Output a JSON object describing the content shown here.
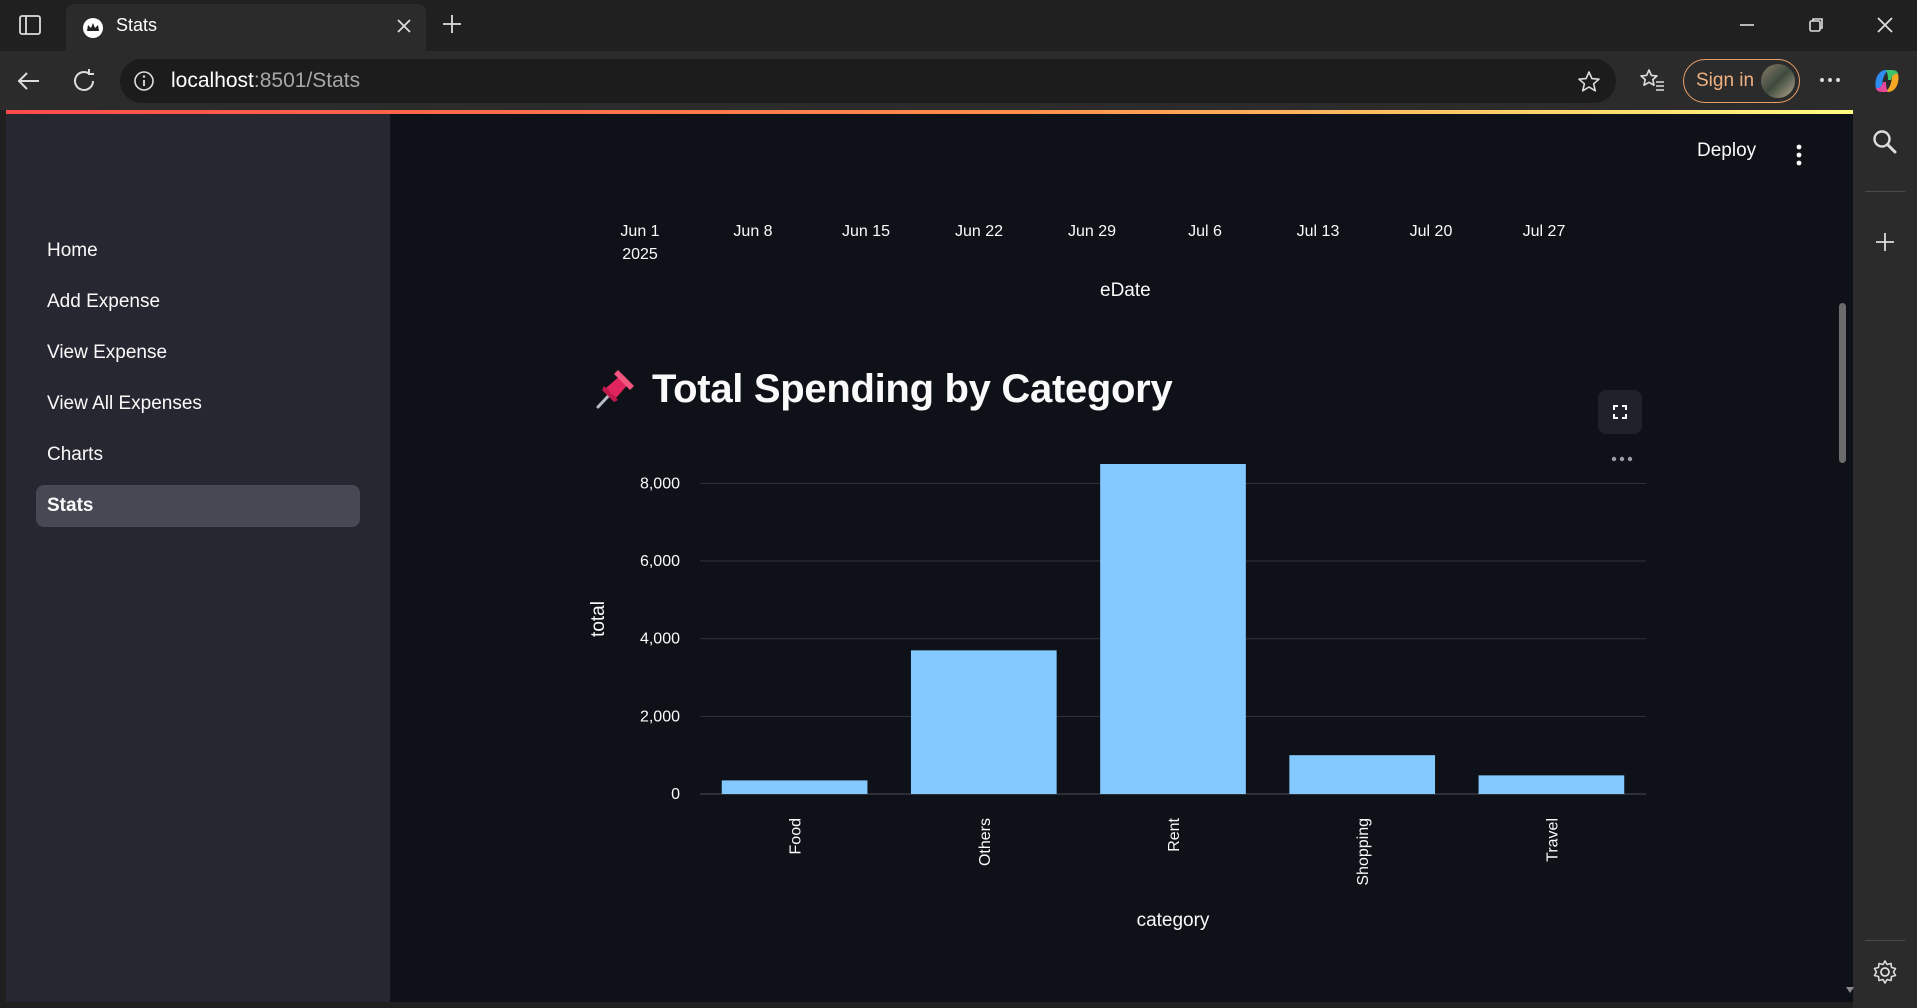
{
  "browser": {
    "tab_title": "Stats",
    "url_host": "localhost",
    "url_rest": ":8501/Stats",
    "sign_in_label": "Sign in"
  },
  "app": {
    "deploy_label": "Deploy",
    "nav": [
      {
        "label": "Home"
      },
      {
        "label": "Add Expense"
      },
      {
        "label": "View Expense"
      },
      {
        "label": "View All Expenses"
      },
      {
        "label": "Charts"
      },
      {
        "label": "Stats",
        "active": true
      }
    ]
  },
  "date_axis": {
    "ticks": [
      "Jun 1",
      "Jun 8",
      "Jun 15",
      "Jun 22",
      "Jun 29",
      "Jul 6",
      "Jul 13",
      "Jul 20",
      "Jul 27"
    ],
    "year_label": "2025",
    "title": "eDate"
  },
  "section": {
    "icon": "pushpin-icon",
    "title": "Total Spending by Category"
  },
  "colors": {
    "bar": "#83c9ff",
    "background": "#0e1117",
    "sidebar": "#262730",
    "grid": "#31333f"
  },
  "chart_data": {
    "type": "bar",
    "categories": [
      "Food",
      "Others",
      "Rent",
      "Shopping",
      "Travel"
    ],
    "values": [
      350,
      3700,
      8500,
      1000,
      480
    ],
    "xlabel": "category",
    "ylabel": "total",
    "yticks": [
      0,
      2000,
      4000,
      6000,
      8000
    ],
    "ytick_labels": [
      "0",
      "2,000",
      "4,000",
      "6,000",
      "8,000"
    ],
    "ylim": [
      0,
      8500
    ],
    "grid": true
  }
}
